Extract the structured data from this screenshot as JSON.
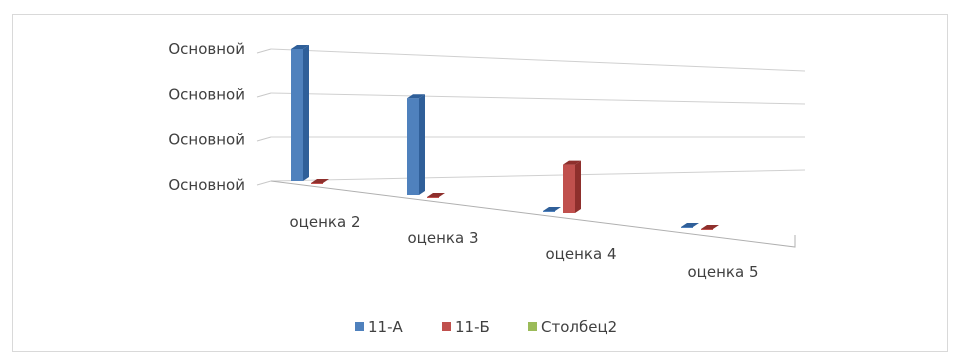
{
  "chart_data": {
    "type": "bar",
    "title": "",
    "xlabel": "",
    "ylabel": "",
    "categories": [
      "оценка 2",
      "оценка 3",
      "оценка 4",
      "оценка 5"
    ],
    "y_tick_labels": [
      "Основной",
      "Основной",
      "Основной",
      "Основной"
    ],
    "ylim": [
      0,
      3
    ],
    "series": [
      {
        "name": "11-А",
        "color": "#4F81BD",
        "values": [
          3.0,
          2.2,
          0.0,
          0.0
        ]
      },
      {
        "name": "11-Б",
        "color": "#C0504D",
        "values": [
          0.0,
          0.0,
          1.1,
          0.0
        ]
      },
      {
        "name": "Столбец2",
        "color": "#9BBB59",
        "values": [
          0,
          0,
          0,
          0
        ]
      }
    ],
    "grid": true,
    "legend_position": "bottom",
    "perspective": "3d"
  }
}
